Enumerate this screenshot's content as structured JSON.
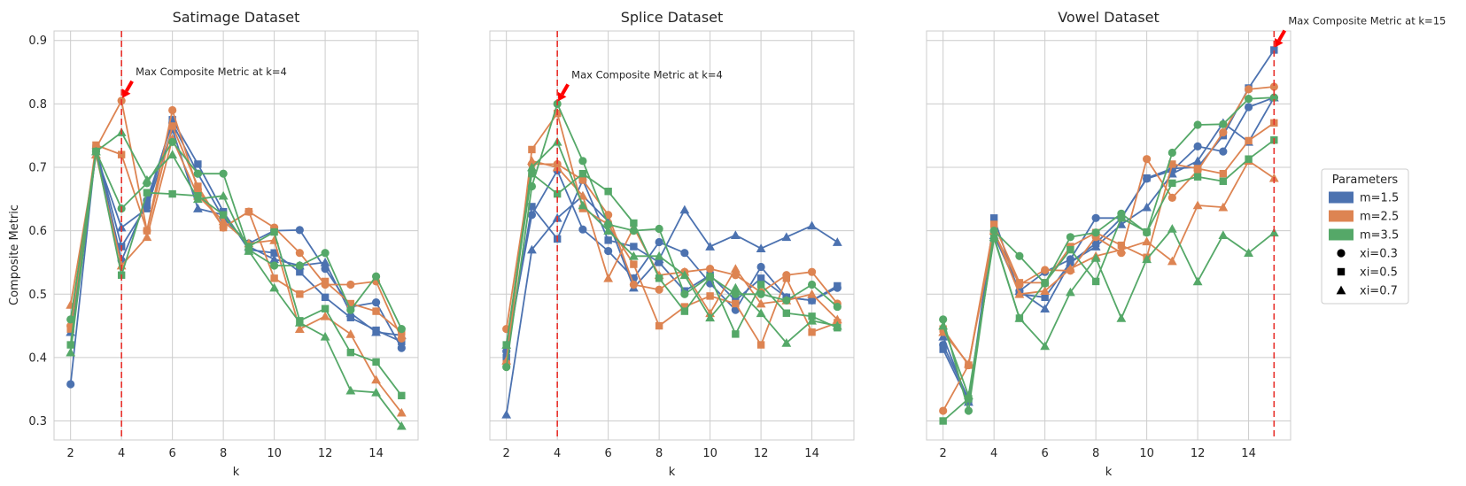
{
  "chart_data": [
    {
      "type": "line",
      "title": "Satimage Dataset",
      "xlabel": "k",
      "ylabel": "Composite Metric",
      "x": [
        2,
        3,
        4,
        5,
        6,
        7,
        8,
        9,
        10,
        11,
        12,
        13,
        14,
        15
      ],
      "xticks": [
        "2",
        "4",
        "6",
        "8",
        "10",
        "12",
        "14"
      ],
      "ylim": [
        0.27,
        0.915
      ],
      "yticks": [
        "0.3",
        "0.4",
        "0.5",
        "0.6",
        "0.7",
        "0.8",
        "0.9"
      ],
      "grid": true,
      "max_k": 4,
      "annotation": "Max Composite Metric at k=4",
      "series": [
        {
          "m": "m=1.5",
          "xi": "xi=0.3",
          "values": [
            0.358,
            0.73,
            0.553,
            0.648,
            0.77,
            0.69,
            0.62,
            0.58,
            0.6,
            0.601,
            0.54,
            0.48,
            0.487,
            0.415
          ]
        },
        {
          "m": "m=1.5",
          "xi": "xi=0.5",
          "values": [
            0.445,
            0.73,
            0.575,
            0.64,
            0.775,
            0.705,
            0.63,
            0.57,
            0.565,
            0.535,
            0.495,
            0.463,
            0.443,
            0.425
          ]
        },
        {
          "m": "m=1.5",
          "xi": "xi=0.7",
          "values": [
            0.44,
            0.72,
            0.605,
            0.635,
            0.76,
            0.635,
            0.625,
            0.575,
            0.555,
            0.545,
            0.55,
            0.47,
            0.44,
            0.435
          ]
        },
        {
          "m": "m=2.5",
          "xi": "xi=0.3",
          "values": [
            0.45,
            0.73,
            0.805,
            0.6,
            0.79,
            0.665,
            0.605,
            0.63,
            0.605,
            0.565,
            0.515,
            0.515,
            0.52,
            0.43
          ]
        },
        {
          "m": "m=2.5",
          "xi": "xi=0.5",
          "values": [
            0.445,
            0.735,
            0.72,
            0.6,
            0.765,
            0.67,
            0.605,
            0.63,
            0.525,
            0.5,
            0.52,
            0.485,
            0.473,
            0.44
          ]
        },
        {
          "m": "m=2.5",
          "xi": "xi=0.7",
          "values": [
            0.483,
            0.72,
            0.545,
            0.59,
            0.745,
            0.655,
            0.615,
            0.58,
            0.585,
            0.445,
            0.465,
            0.437,
            0.365,
            0.313
          ]
        },
        {
          "m": "m=3.5",
          "xi": "xi=0.3",
          "values": [
            0.46,
            0.725,
            0.635,
            0.675,
            0.74,
            0.69,
            0.69,
            0.57,
            0.545,
            0.545,
            0.565,
            0.475,
            0.528,
            0.445
          ]
        },
        {
          "m": "m=3.5",
          "xi": "xi=0.5",
          "values": [
            0.42,
            0.725,
            0.53,
            0.66,
            0.658,
            0.655,
            0.625,
            0.575,
            0.598,
            0.458,
            0.477,
            0.408,
            0.393,
            0.34
          ]
        },
        {
          "m": "m=3.5",
          "xi": "xi=0.7",
          "values": [
            0.408,
            0.725,
            0.755,
            0.68,
            0.72,
            0.65,
            0.655,
            0.568,
            0.51,
            0.455,
            0.433,
            0.348,
            0.345,
            0.292
          ]
        }
      ]
    },
    {
      "type": "line",
      "title": "Splice Dataset",
      "xlabel": "k",
      "ylabel": "",
      "x": [
        2,
        3,
        4,
        5,
        6,
        7,
        8,
        9,
        10,
        11,
        12,
        13,
        14,
        15
      ],
      "xticks": [
        "2",
        "4",
        "6",
        "8",
        "10",
        "12",
        "14"
      ],
      "ylim": [
        0.27,
        0.915
      ],
      "yticks": [],
      "grid": true,
      "max_k": 4,
      "annotation": "Max Composite Metric at k=4",
      "series": [
        {
          "m": "m=1.5",
          "xi": "xi=0.3",
          "values": [
            0.41,
            0.625,
            0.695,
            0.602,
            0.568,
            0.525,
            0.582,
            0.565,
            0.517,
            0.475,
            0.543,
            0.495,
            0.49,
            0.51
          ]
        },
        {
          "m": "m=1.5",
          "xi": "xi=0.5",
          "values": [
            0.4,
            0.638,
            0.587,
            0.68,
            0.585,
            0.575,
            0.55,
            0.505,
            0.53,
            0.49,
            0.525,
            0.495,
            0.49,
            0.513
          ]
        },
        {
          "m": "m=1.5",
          "xi": "xi=0.7",
          "values": [
            0.31,
            0.57,
            0.62,
            0.655,
            0.615,
            0.51,
            0.555,
            0.633,
            0.575,
            0.593,
            0.572,
            0.59,
            0.608,
            0.582
          ]
        },
        {
          "m": "m=2.5",
          "xi": "xi=0.3",
          "values": [
            0.445,
            0.705,
            0.705,
            0.68,
            0.625,
            0.515,
            0.507,
            0.535,
            0.54,
            0.53,
            0.503,
            0.53,
            0.535,
            0.485
          ]
        },
        {
          "m": "m=2.5",
          "xi": "xi=0.5",
          "values": [
            0.39,
            0.728,
            0.785,
            0.635,
            0.61,
            0.547,
            0.45,
            0.48,
            0.497,
            0.485,
            0.42,
            0.525,
            0.44,
            0.455
          ]
        },
        {
          "m": "m=2.5",
          "xi": "xi=0.7",
          "values": [
            0.395,
            0.71,
            0.7,
            0.655,
            0.525,
            0.605,
            0.53,
            0.535,
            0.47,
            0.54,
            0.485,
            0.49,
            0.5,
            0.46
          ]
        },
        {
          "m": "m=3.5",
          "xi": "xi=0.3",
          "values": [
            0.385,
            0.67,
            0.8,
            0.71,
            0.61,
            0.6,
            0.603,
            0.5,
            0.528,
            0.5,
            0.5,
            0.49,
            0.515,
            0.48
          ]
        },
        {
          "m": "m=3.5",
          "xi": "xi=0.5",
          "values": [
            0.42,
            0.69,
            0.658,
            0.69,
            0.662,
            0.612,
            0.525,
            0.473,
            0.527,
            0.437,
            0.515,
            0.47,
            0.465,
            0.447
          ]
        },
        {
          "m": "m=3.5",
          "xi": "xi=0.7",
          "values": [
            0.42,
            0.7,
            0.74,
            0.64,
            0.6,
            0.56,
            0.56,
            0.53,
            0.463,
            0.51,
            0.47,
            0.423,
            0.458,
            0.45
          ]
        }
      ]
    },
    {
      "type": "line",
      "title": "Vowel Dataset",
      "xlabel": "k",
      "ylabel": "",
      "x": [
        2,
        3,
        4,
        5,
        6,
        7,
        8,
        9,
        10,
        11,
        12,
        13,
        14,
        15
      ],
      "xticks": [
        "2",
        "4",
        "6",
        "8",
        "10",
        "12",
        "14"
      ],
      "ylim": [
        0.27,
        0.915
      ],
      "yticks": [],
      "grid": true,
      "max_k": 15,
      "annotation": "Max Composite Metric at k=15",
      "series": [
        {
          "m": "m=1.5",
          "xi": "xi=0.3",
          "values": [
            0.42,
            0.335,
            0.595,
            0.505,
            0.535,
            0.555,
            0.62,
            0.62,
            0.682,
            0.695,
            0.733,
            0.725,
            0.795,
            0.81
          ]
        },
        {
          "m": "m=1.5",
          "xi": "xi=0.5",
          "values": [
            0.413,
            0.33,
            0.62,
            0.5,
            0.495,
            0.55,
            0.58,
            0.62,
            0.683,
            0.698,
            0.7,
            0.75,
            0.825,
            0.885
          ]
        },
        {
          "m": "m=1.5",
          "xi": "xi=0.7",
          "values": [
            0.433,
            0.33,
            0.593,
            0.505,
            0.477,
            0.55,
            0.575,
            0.61,
            0.637,
            0.69,
            0.71,
            0.77,
            0.74,
            0.81
          ]
        },
        {
          "m": "m=2.5",
          "xi": "xi=0.3",
          "values": [
            0.316,
            0.388,
            0.598,
            0.515,
            0.538,
            0.537,
            0.59,
            0.565,
            0.713,
            0.652,
            0.695,
            0.755,
            0.823,
            0.827
          ]
        },
        {
          "m": "m=2.5",
          "xi": "xi=0.5",
          "values": [
            0.445,
            0.388,
            0.61,
            0.518,
            0.518,
            0.575,
            0.597,
            0.577,
            0.558,
            0.705,
            0.698,
            0.69,
            0.742,
            0.77
          ]
        },
        {
          "m": "m=2.5",
          "xi": "xi=0.7",
          "values": [
            0.44,
            0.39,
            0.6,
            0.5,
            0.505,
            0.54,
            0.56,
            0.57,
            0.583,
            0.552,
            0.64,
            0.637,
            0.71,
            0.683
          ]
        },
        {
          "m": "m=3.5",
          "xi": "xi=0.3",
          "values": [
            0.46,
            0.316,
            0.6,
            0.56,
            0.517,
            0.59,
            0.597,
            0.627,
            0.597,
            0.723,
            0.767,
            0.768,
            0.808,
            0.81
          ]
        },
        {
          "m": "m=3.5",
          "xi": "xi=0.5",
          "values": [
            0.3,
            0.335,
            0.588,
            0.462,
            0.518,
            0.57,
            0.52,
            0.62,
            0.598,
            0.675,
            0.685,
            0.678,
            0.713,
            0.743
          ]
        },
        {
          "m": "m=3.5",
          "xi": "xi=0.7",
          "values": [
            0.45,
            0.34,
            0.59,
            0.462,
            0.418,
            0.503,
            0.557,
            0.462,
            0.555,
            0.603,
            0.52,
            0.593,
            0.565,
            0.597
          ]
        }
      ]
    }
  ],
  "legend": {
    "title": "Parameters",
    "placement": "right",
    "colors": [
      {
        "label": "m=1.5",
        "color": "#4c72b0"
      },
      {
        "label": "m=2.5",
        "color": "#dd8452"
      },
      {
        "label": "m=3.5",
        "color": "#55a868"
      }
    ],
    "markers": [
      {
        "label": "xi=0.3",
        "shape": "circle"
      },
      {
        "label": "xi=0.5",
        "shape": "square"
      },
      {
        "label": "xi=0.7",
        "shape": "triangle"
      }
    ]
  },
  "colors": {
    "m=1.5": "#4c72b0",
    "m=2.5": "#dd8452",
    "m=3.5": "#55a868",
    "vline": "#e8302a",
    "arrow": "#ff0000"
  }
}
